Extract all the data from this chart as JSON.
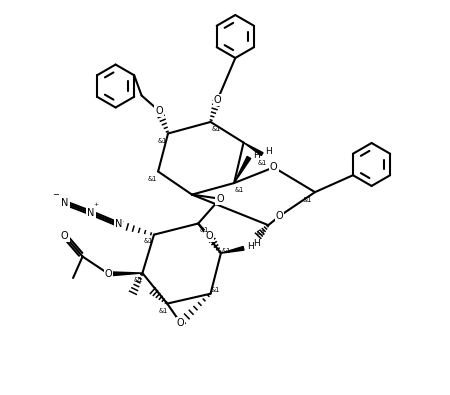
{
  "bg": "#ffffff",
  "lw": 1.5,
  "fs": 6.5,
  "fw": 4.5,
  "fh": 3.95,
  "dpi": 100,
  "xlim": [
    0,
    10
  ],
  "ylim": [
    0,
    9.5
  ]
}
